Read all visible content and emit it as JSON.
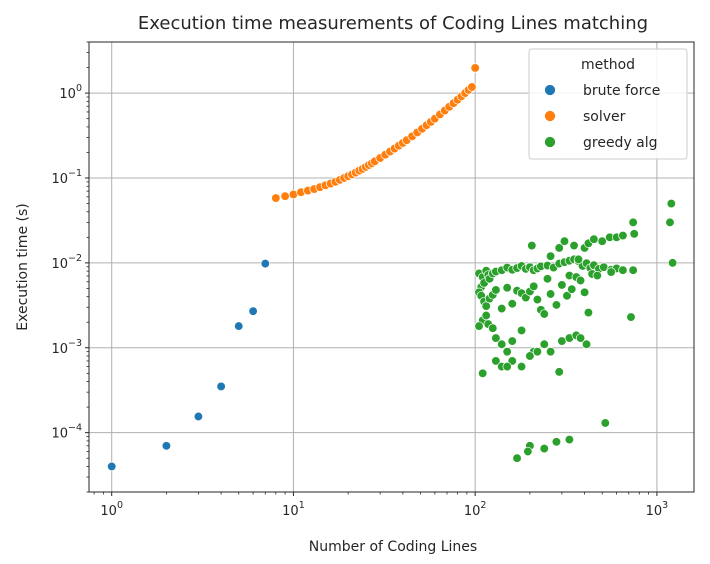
{
  "chart_data": {
    "type": "scatter",
    "title": "Execution time measurements of Coding Lines matching",
    "xlabel": "Number of Coding Lines",
    "ylabel": "Execution time (s)",
    "xscale": "log",
    "yscale": "log",
    "xlim": [
      0.75,
      1600
    ],
    "ylim": [
      2e-05,
      4
    ],
    "grid": true,
    "xticks": [
      {
        "value": 1,
        "base": "10",
        "exp": "0"
      },
      {
        "value": 10,
        "base": "10",
        "exp": "1"
      },
      {
        "value": 100,
        "base": "10",
        "exp": "2"
      },
      {
        "value": 1000,
        "base": "10",
        "exp": "3"
      }
    ],
    "yticks": [
      {
        "value": 0.0001,
        "base": "10",
        "exp": "−4"
      },
      {
        "value": 0.001,
        "base": "10",
        "exp": "−3"
      },
      {
        "value": 0.01,
        "base": "10",
        "exp": "−2"
      },
      {
        "value": 0.1,
        "base": "10",
        "exp": "−1"
      },
      {
        "value": 1,
        "base": "10",
        "exp": "0"
      }
    ],
    "legend": {
      "title": "method",
      "placement": "top-right"
    },
    "series": [
      {
        "name": "brute force",
        "color": "#1f77b4",
        "points": [
          [
            1,
            4e-05
          ],
          [
            2,
            7e-05
          ],
          [
            3,
            0.000155
          ],
          [
            4,
            0.00035
          ],
          [
            5,
            0.0018
          ],
          [
            6,
            0.0027
          ],
          [
            7,
            0.0098
          ]
        ]
      },
      {
        "name": "solver",
        "color": "#ff7f0e",
        "points": [
          [
            8,
            0.058
          ],
          [
            9,
            0.061
          ],
          [
            10,
            0.064
          ],
          [
            11,
            0.068
          ],
          [
            12,
            0.071
          ],
          [
            13,
            0.074
          ],
          [
            14,
            0.078
          ],
          [
            15,
            0.082
          ],
          [
            16,
            0.086
          ],
          [
            17,
            0.09
          ],
          [
            18,
            0.095
          ],
          [
            19,
            0.1
          ],
          [
            20,
            0.105
          ],
          [
            21,
            0.11
          ],
          [
            22,
            0.116
          ],
          [
            23,
            0.122
          ],
          [
            24,
            0.128
          ],
          [
            25,
            0.135
          ],
          [
            26,
            0.142
          ],
          [
            27,
            0.149
          ],
          [
            28,
            0.157
          ],
          [
            30,
            0.172
          ],
          [
            32,
            0.188
          ],
          [
            34,
            0.205
          ],
          [
            36,
            0.222
          ],
          [
            38,
            0.24
          ],
          [
            40,
            0.259
          ],
          [
            42,
            0.279
          ],
          [
            45,
            0.31
          ],
          [
            48,
            0.344
          ],
          [
            51,
            0.38
          ],
          [
            54,
            0.418
          ],
          [
            57,
            0.458
          ],
          [
            60,
            0.5
          ],
          [
            64,
            0.56
          ],
          [
            68,
            0.622
          ],
          [
            72,
            0.69
          ],
          [
            76,
            0.76
          ],
          [
            80,
            0.835
          ],
          [
            84,
            0.915
          ],
          [
            88,
            1.0
          ],
          [
            92,
            1.09
          ],
          [
            96,
            1.18
          ],
          [
            100,
            1.98
          ]
        ]
      },
      {
        "name": "greedy alg",
        "color": "#2ca02c",
        "points": [
          [
            1200,
            0.05
          ],
          [
            1180,
            0.03
          ],
          [
            1220,
            0.01
          ],
          [
            740,
            0.03
          ],
          [
            750,
            0.022
          ],
          [
            740,
            0.0082
          ],
          [
            720,
            0.0023
          ],
          [
            520,
            0.00013
          ],
          [
            330,
            8.3e-05
          ],
          [
            280,
            7.8e-05
          ],
          [
            240,
            6.5e-05
          ],
          [
            200,
            7e-05
          ],
          [
            195,
            6e-05
          ],
          [
            170,
            5e-05
          ],
          [
            105,
            0.0075
          ],
          [
            108,
            0.0052
          ],
          [
            110,
            0.0068
          ],
          [
            112,
            0.0058
          ],
          [
            115,
            0.0081
          ],
          [
            118,
            0.0072
          ],
          [
            120,
            0.0065
          ],
          [
            125,
            0.0075
          ],
          [
            130,
            0.0079
          ],
          [
            140,
            0.0082
          ],
          [
            150,
            0.0088
          ],
          [
            160,
            0.0083
          ],
          [
            170,
            0.0087
          ],
          [
            180,
            0.0092
          ],
          [
            190,
            0.0085
          ],
          [
            200,
            0.0089
          ],
          [
            210,
            0.0082
          ],
          [
            220,
            0.0086
          ],
          [
            230,
            0.0091
          ],
          [
            250,
            0.0093
          ],
          [
            270,
            0.0088
          ],
          [
            290,
            0.0098
          ],
          [
            310,
            0.0102
          ],
          [
            330,
            0.0106
          ],
          [
            350,
            0.011
          ],
          [
            370,
            0.0105
          ],
          [
            390,
            0.0092
          ],
          [
            410,
            0.0099
          ],
          [
            430,
            0.0087
          ],
          [
            450,
            0.0094
          ],
          [
            480,
            0.0085
          ],
          [
            510,
            0.0089
          ],
          [
            560,
            0.0083
          ],
          [
            600,
            0.0086
          ],
          [
            650,
            0.0082
          ],
          [
            105,
            0.0045
          ],
          [
            108,
            0.0041
          ],
          [
            112,
            0.0035
          ],
          [
            115,
            0.0031
          ],
          [
            120,
            0.0038
          ],
          [
            125,
            0.0042
          ],
          [
            130,
            0.0048
          ],
          [
            140,
            0.0029
          ],
          [
            150,
            0.0051
          ],
          [
            160,
            0.0033
          ],
          [
            170,
            0.0047
          ],
          [
            180,
            0.0044
          ],
          [
            190,
            0.0039
          ],
          [
            200,
            0.0046
          ],
          [
            210,
            0.0053
          ],
          [
            220,
            0.0037
          ],
          [
            230,
            0.0028
          ],
          [
            240,
            0.0025
          ],
          [
            260,
            0.0043
          ],
          [
            280,
            0.0032
          ],
          [
            300,
            0.0055
          ],
          [
            320,
            0.0041
          ],
          [
            340,
            0.0049
          ],
          [
            400,
            0.0045
          ],
          [
            420,
            0.0026
          ],
          [
            110,
            0.0021
          ],
          [
            115,
            0.0024
          ],
          [
            105,
            0.0018
          ],
          [
            118,
            0.0019
          ],
          [
            125,
            0.0017
          ],
          [
            130,
            0.0013
          ],
          [
            140,
            0.0011
          ],
          [
            150,
            0.0009
          ],
          [
            160,
            0.0012
          ],
          [
            180,
            0.0016
          ],
          [
            210,
            0.0009
          ],
          [
            240,
            0.0011
          ],
          [
            260,
            0.0009
          ],
          [
            300,
            0.0012
          ],
          [
            330,
            0.0013
          ],
          [
            360,
            0.0014
          ],
          [
            380,
            0.0013
          ],
          [
            410,
            0.0011
          ],
          [
            130,
            0.0007
          ],
          [
            140,
            0.0006
          ],
          [
            160,
            0.0007
          ],
          [
            180,
            0.0006
          ],
          [
            200,
            0.0008
          ],
          [
            110,
            0.0005
          ],
          [
            290,
            0.00052
          ],
          [
            220,
            0.0009
          ],
          [
            150,
            0.0006
          ],
          [
            205,
            0.016
          ],
          [
            260,
            0.012
          ],
          [
            290,
            0.015
          ],
          [
            310,
            0.018
          ],
          [
            350,
            0.016
          ],
          [
            370,
            0.011
          ],
          [
            400,
            0.015
          ],
          [
            420,
            0.017
          ],
          [
            450,
            0.019
          ],
          [
            500,
            0.018
          ],
          [
            550,
            0.02
          ],
          [
            600,
            0.02
          ],
          [
            650,
            0.021
          ],
          [
            250,
            0.0065
          ],
          [
            330,
            0.0071
          ],
          [
            360,
            0.0068
          ],
          [
            380,
            0.0062
          ],
          [
            440,
            0.0074
          ],
          [
            470,
            0.0071
          ],
          [
            560,
            0.0078
          ]
        ]
      }
    ]
  }
}
